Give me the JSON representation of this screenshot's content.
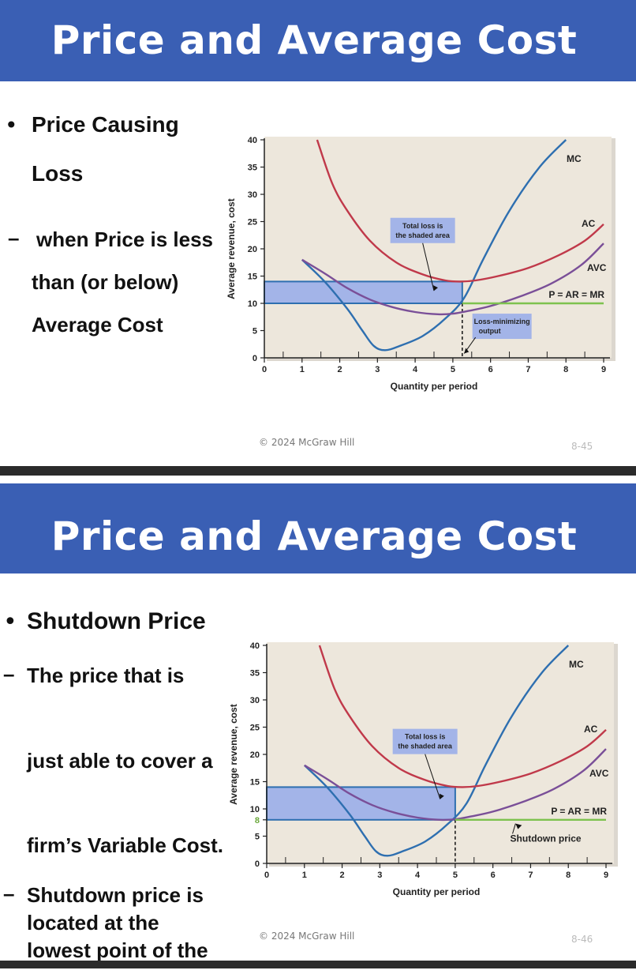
{
  "slides": [
    {
      "title": "Price and Average Cost",
      "bullets": [
        "Price Causing",
        "Loss"
      ],
      "sub_bullets": [
        "when Price is less",
        "than (or below)",
        "Average Cost"
      ],
      "footer": "© 2024 McGraw Hill",
      "slide_number": "8-45"
    },
    {
      "title": "Price and Average Cost",
      "bullets": [
        "Shutdown Price"
      ],
      "sub_bullets": [
        "The price that is",
        "just able to cover a",
        "firm’s Variable Cost.",
        "Shutdown price is",
        "located at the",
        "lowest point of the"
      ],
      "footer": "© 2024 McGraw Hill",
      "slide_number": "8-46"
    }
  ],
  "chart_data": [
    {
      "type": "line",
      "xlabel": "Quantity per period",
      "ylabel": "Average revenue, cost",
      "xlim": [
        0,
        9
      ],
      "ylim": [
        0,
        40
      ],
      "x_ticks": [
        "0",
        "1",
        "2",
        "3",
        "4",
        "5",
        "6",
        "7",
        "8",
        "9"
      ],
      "y_ticks": [
        "0",
        "5",
        "10",
        "15",
        "20",
        "25",
        "30",
        "35",
        "40"
      ],
      "series": [
        {
          "name": "MC",
          "color": "#2e6fb0",
          "x": [
            1,
            1.6,
            2.2,
            2.6,
            2.9,
            3.2,
            3.6,
            4.2,
            4.8,
            5.3,
            5.8,
            6.5,
            7.3,
            8.0
          ],
          "y": [
            18,
            14,
            9,
            5,
            2.2,
            1.4,
            2.2,
            4,
            7.2,
            11,
            18,
            27,
            35,
            40
          ]
        },
        {
          "name": "AC",
          "color": "#c0394a",
          "x": [
            1.4,
            1.8,
            2.2,
            2.8,
            3.5,
            4.2,
            4.8,
            5.2,
            5.6,
            6.2,
            7,
            7.8,
            8.5,
            9
          ],
          "y": [
            40,
            32,
            27,
            21.5,
            17.5,
            15.3,
            14.2,
            14,
            14.2,
            15,
            16.5,
            18.8,
            21.5,
            24.5
          ]
        },
        {
          "name": "AVC",
          "color": "#7a4f98",
          "x": [
            1,
            1.6,
            2.2,
            2.8,
            3.4,
            4,
            4.6,
            5,
            5.4,
            6,
            6.8,
            7.6,
            8.4,
            9
          ],
          "y": [
            18,
            15.5,
            12.8,
            10.7,
            9.3,
            8.4,
            8,
            8.1,
            8.6,
            9.5,
            11.3,
            13.6,
            17,
            21
          ]
        },
        {
          "name": "P = AR = MR",
          "color": "#7ec24f",
          "x": [
            5.25,
            9
          ],
          "y": [
            10,
            10
          ]
        }
      ],
      "shaded_area": {
        "x": [
          0,
          5.25
        ],
        "y": [
          10,
          14
        ],
        "color": "#a3b4e8"
      },
      "annotations": [
        {
          "text": "Total loss is the shaded area",
          "x": 4.2,
          "y": 22.5
        },
        {
          "text": "Loss-minimizing output",
          "x": 6,
          "y": 5.5
        }
      ]
    },
    {
      "type": "line",
      "xlabel": "Quantity per period",
      "ylabel": "Average revenue, cost",
      "xlim": [
        0,
        9
      ],
      "ylim": [
        0,
        40
      ],
      "x_ticks": [
        "0",
        "1",
        "2",
        "3",
        "4",
        "5",
        "6",
        "7",
        "8",
        "9"
      ],
      "y_ticks": [
        "0",
        "5",
        "8",
        "10",
        "15",
        "20",
        "25",
        "30",
        "35",
        "40"
      ],
      "series": [
        {
          "name": "MC",
          "color": "#2e6fb0",
          "x": [
            1,
            1.6,
            2.2,
            2.6,
            2.9,
            3.2,
            3.6,
            4.2,
            4.8,
            5.3,
            5.8,
            6.5,
            7.3,
            8.0
          ],
          "y": [
            18,
            14,
            9,
            5,
            2.2,
            1.4,
            2.2,
            4,
            7.2,
            11,
            18,
            27,
            35,
            40
          ]
        },
        {
          "name": "AC",
          "color": "#c0394a",
          "x": [
            1.4,
            1.8,
            2.2,
            2.8,
            3.5,
            4.2,
            4.8,
            5.2,
            5.6,
            6.2,
            7,
            7.8,
            8.5,
            9
          ],
          "y": [
            40,
            32,
            27,
            21.5,
            17.5,
            15.3,
            14.2,
            14,
            14.2,
            15,
            16.5,
            18.8,
            21.5,
            24.5
          ]
        },
        {
          "name": "AVC",
          "color": "#7a4f98",
          "x": [
            1,
            1.6,
            2.2,
            2.8,
            3.4,
            4,
            4.6,
            5,
            5.4,
            6,
            6.8,
            7.6,
            8.4,
            9
          ],
          "y": [
            18,
            15.5,
            12.8,
            10.7,
            9.3,
            8.4,
            8,
            8.1,
            8.6,
            9.5,
            11.3,
            13.6,
            17,
            21
          ]
        },
        {
          "name": "P = AR = MR",
          "color": "#7ec24f",
          "x": [
            5,
            9
          ],
          "y": [
            8,
            8
          ]
        }
      ],
      "shaded_area": {
        "x": [
          0,
          5
        ],
        "y": [
          8,
          14
        ],
        "color": "#a3b4e8"
      },
      "annotations": [
        {
          "text": "Total loss is the shaded area",
          "x": 4.2,
          "y": 21.5
        },
        {
          "text": "Shutdown price",
          "x": 7.4,
          "y": 4
        }
      ]
    }
  ]
}
